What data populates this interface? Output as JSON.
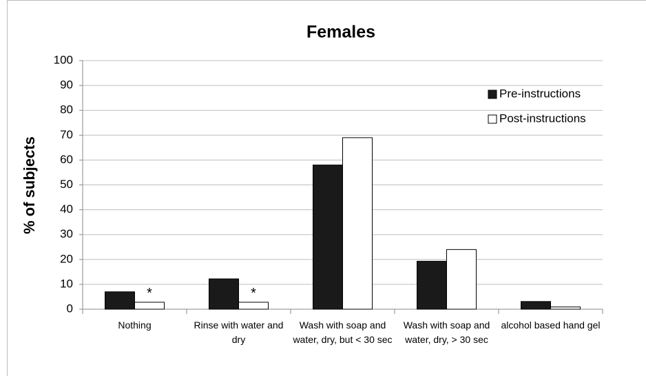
{
  "chart_data": {
    "type": "bar",
    "title": "Females",
    "y_label": "% of subjects",
    "categories": [
      "Nothing",
      "Rinse with water and dry",
      "Wash with soap and water, dry, but < 30 sec",
      "Wash with soap and water, dry, > 30 sec",
      "alcohol based hand gel"
    ],
    "series": [
      {
        "name": "Pre-instructions",
        "color": "#1a1a1a",
        "values": [
          7,
          12.2,
          58,
          19.3,
          3.1
        ]
      },
      {
        "name": "Post-instructions",
        "color": "#ffffff",
        "values": [
          2.8,
          2.8,
          69,
          24,
          0.9
        ]
      }
    ],
    "annotations": [
      "*",
      "*",
      null,
      null,
      null
    ],
    "ylim": [
      0,
      100
    ],
    "yticks": [
      0,
      10,
      20,
      30,
      40,
      50,
      60,
      70,
      80,
      90,
      100
    ],
    "grid": true,
    "legend": "top-right"
  }
}
